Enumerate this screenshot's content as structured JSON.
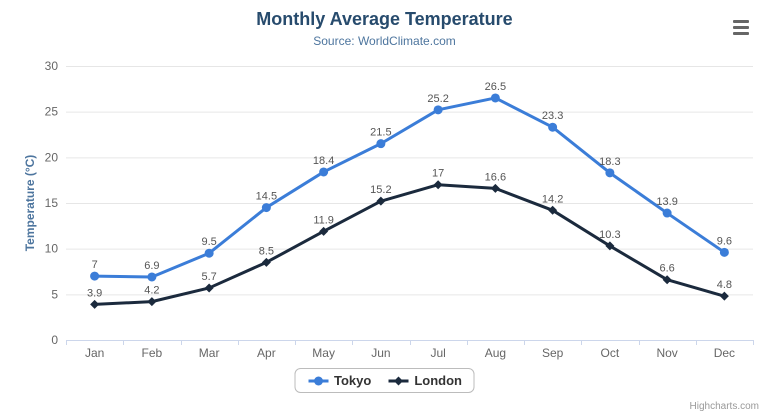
{
  "header": {
    "title": "Monthly Average Temperature",
    "subtitle": "Source: WorldClimate.com",
    "menu_icon": "hamburger-menu-icon"
  },
  "credits": "Highcharts.com",
  "colors": {
    "title": "#274b6d",
    "subtitle": "#4d759e",
    "axis_title": "#4d759e",
    "tick_label": "#666666",
    "data_label": "#555555",
    "grid": "#e6e6e6",
    "axis_line": "#ccd6eb",
    "tokyo": "#3b7dd8",
    "london": "#1b2a3d"
  },
  "chart_data": {
    "type": "line",
    "title": "Monthly Average Temperature",
    "subtitle": "Source: WorldClimate.com",
    "categories": [
      "Jan",
      "Feb",
      "Mar",
      "Apr",
      "May",
      "Jun",
      "Jul",
      "Aug",
      "Sep",
      "Oct",
      "Nov",
      "Dec"
    ],
    "series": [
      {
        "name": "Tokyo",
        "color": "#3b7dd8",
        "marker": "circle",
        "values": [
          7,
          6.9,
          9.5,
          14.5,
          18.4,
          21.5,
          25.2,
          26.5,
          23.3,
          18.3,
          13.9,
          9.6
        ]
      },
      {
        "name": "London",
        "color": "#1b2a3d",
        "marker": "diamond",
        "values": [
          3.9,
          4.2,
          5.7,
          8.5,
          11.9,
          15.2,
          17,
          16.6,
          14.2,
          10.3,
          6.6,
          4.8
        ]
      }
    ],
    "xlabel": "",
    "ylabel": "Temperature (°C)",
    "ylim": [
      0,
      30
    ],
    "ytick_step": 5,
    "grid": true,
    "data_labels": true,
    "legend_position": "bottom"
  }
}
